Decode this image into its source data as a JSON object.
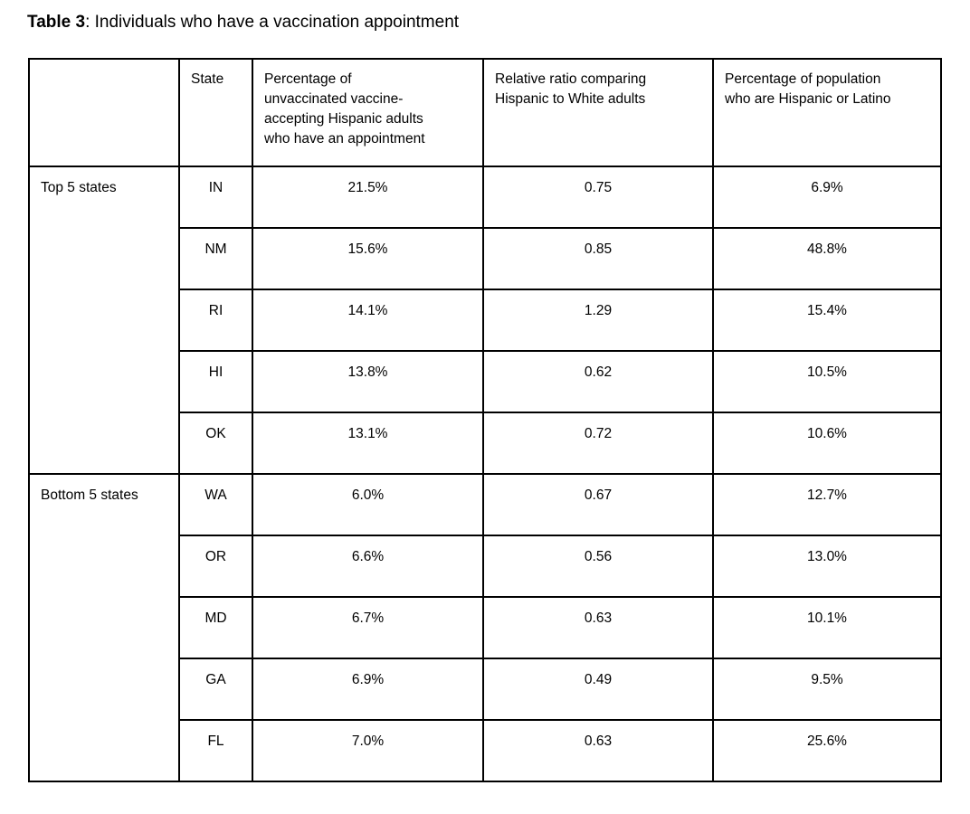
{
  "caption": {
    "label": "Table 3",
    "text": ": Individuals who have a vaccination appointment"
  },
  "colors": {
    "border": "#000000",
    "text": "#000000",
    "background": "#ffffff"
  },
  "table": {
    "headers": [
      "",
      "State",
      "Percentage of unvaccinated vaccine-accepting Hispanic adults who have an appointment",
      "Relative ratio comparing Hispanic to White adults",
      "Percentage of population who are Hispanic or Latino"
    ],
    "groups": [
      {
        "label": "Top 5 states",
        "rows": [
          {
            "state": "IN",
            "appointment_pct": "21.5%",
            "relative_ratio": "0.75",
            "population_pct": "6.9%"
          },
          {
            "state": "NM",
            "appointment_pct": "15.6%",
            "relative_ratio": "0.85",
            "population_pct": "48.8%"
          },
          {
            "state": "RI",
            "appointment_pct": "14.1%",
            "relative_ratio": "1.29",
            "population_pct": "15.4%"
          },
          {
            "state": "HI",
            "appointment_pct": "13.8%",
            "relative_ratio": "0.62",
            "population_pct": "10.5%"
          },
          {
            "state": "OK",
            "appointment_pct": "13.1%",
            "relative_ratio": "0.72",
            "population_pct": "10.6%"
          }
        ]
      },
      {
        "label": "Bottom 5 states",
        "rows": [
          {
            "state": "WA",
            "appointment_pct": "6.0%",
            "relative_ratio": "0.67",
            "population_pct": "12.7%"
          },
          {
            "state": "OR",
            "appointment_pct": "6.6%",
            "relative_ratio": "0.56",
            "population_pct": "13.0%"
          },
          {
            "state": "MD",
            "appointment_pct": "6.7%",
            "relative_ratio": "0.63",
            "population_pct": "10.1%"
          },
          {
            "state": "GA",
            "appointment_pct": "6.9%",
            "relative_ratio": "0.49",
            "population_pct": "9.5%"
          },
          {
            "state": "FL",
            "appointment_pct": "7.0%",
            "relative_ratio": "0.63",
            "population_pct": "25.6%"
          }
        ]
      }
    ]
  }
}
